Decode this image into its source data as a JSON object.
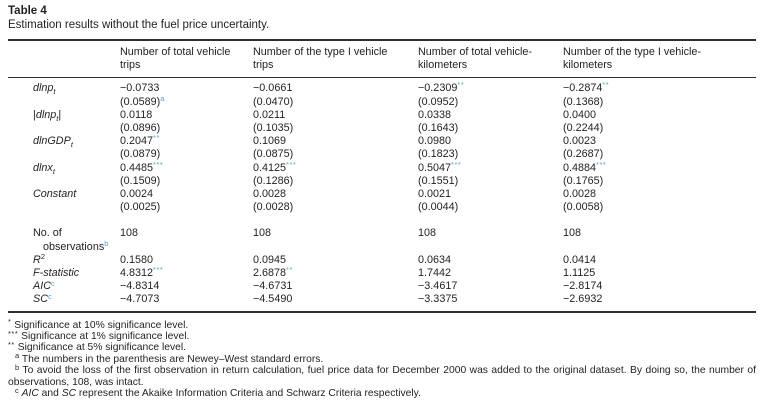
{
  "colors": {
    "text": "#231f20",
    "link": "#5b9fd6",
    "rule": "#2e2e2e"
  },
  "table": {
    "label": "Table 4",
    "caption": "Estimation results without the fuel price uncertainty.",
    "columns": [
      {
        "lines": [
          "Number of total vehicle",
          "trips"
        ]
      },
      {
        "lines": [
          "Number of the type I vehicle",
          "trips"
        ]
      },
      {
        "lines": [
          "Number of total vehicle-",
          "kilometers"
        ]
      },
      {
        "lines": [
          "Number of the type I vehicle-",
          "kilometers"
        ]
      }
    ],
    "coef_rows": [
      {
        "label": {
          "main": "dlnp",
          "italic": true,
          "sub": "t"
        },
        "cells": [
          {
            "coef": "−0.0733",
            "stars": "",
            "se": "(0.0589)",
            "se_sup": "a"
          },
          {
            "coef": "−0.0661",
            "stars": "",
            "se": "(0.0470)",
            "se_sup": ""
          },
          {
            "coef": "−0.2309",
            "stars": "**",
            "se": "(0.0952)",
            "se_sup": ""
          },
          {
            "coef": "−0.2874",
            "stars": "**",
            "se": "(0.1368)",
            "se_sup": ""
          }
        ]
      },
      {
        "label": {
          "pre": "|",
          "main": "dlnp",
          "italic": true,
          "sub": "t",
          "post": "|"
        },
        "cells": [
          {
            "coef": "0.0118",
            "stars": "",
            "se": "(0.0896)",
            "se_sup": ""
          },
          {
            "coef": "0.0211",
            "stars": "",
            "se": "(0.1035)",
            "se_sup": ""
          },
          {
            "coef": "0.0338",
            "stars": "",
            "se": "(0.1643)",
            "se_sup": ""
          },
          {
            "coef": "0.0400",
            "stars": "",
            "se": "(0.2244)",
            "se_sup": ""
          }
        ]
      },
      {
        "label": {
          "main": "dlnGDP",
          "italic": true,
          "sub": "t"
        },
        "cells": [
          {
            "coef": "0.2047",
            "stars": "**",
            "se": "(0.0879)",
            "se_sup": ""
          },
          {
            "coef": "0.1069",
            "stars": "",
            "se": "(0.0875)",
            "se_sup": ""
          },
          {
            "coef": "0.0980",
            "stars": "",
            "se": "(0.1823)",
            "se_sup": ""
          },
          {
            "coef": "0.0023",
            "stars": "",
            "se": "(0.2687)",
            "se_sup": ""
          }
        ]
      },
      {
        "label": {
          "main": "dlnx",
          "italic": true,
          "sub": "t"
        },
        "cells": [
          {
            "coef": "0.4485",
            "stars": "***",
            "se": "(0.1509)",
            "se_sup": ""
          },
          {
            "coef": "0.4125",
            "stars": "***",
            "se": "(0.1286)",
            "se_sup": ""
          },
          {
            "coef": "0.5047",
            "stars": "***",
            "se": "(0.1551)",
            "se_sup": ""
          },
          {
            "coef": "0.4884",
            "stars": "***",
            "se": "(0.1765)",
            "se_sup": ""
          }
        ]
      },
      {
        "label": {
          "main": "Constant",
          "italic": true
        },
        "cells": [
          {
            "coef": "0.0024",
            "stars": "",
            "se": "(0.0025)",
            "se_sup": ""
          },
          {
            "coef": "0.0028",
            "stars": "",
            "se": "(0.0028)",
            "se_sup": ""
          },
          {
            "coef": "0.0021",
            "stars": "",
            "se": "(0.0044)",
            "se_sup": ""
          },
          {
            "coef": "0.0028",
            "stars": "",
            "se": "(0.0058)",
            "se_sup": ""
          }
        ]
      }
    ],
    "stat_rows": [
      {
        "label": {
          "main": "No. of",
          "italic": false,
          "line2": "observations",
          "line2_sup": "b"
        },
        "cells": [
          {
            "v": "108"
          },
          {
            "v": "108"
          },
          {
            "v": "108"
          },
          {
            "v": "108"
          }
        ]
      },
      {
        "label": {
          "main": "R",
          "italic": true,
          "sup": "2",
          "sup_link": false
        },
        "cells": [
          {
            "v": "0.1580"
          },
          {
            "v": "0.0945"
          },
          {
            "v": "0.0634"
          },
          {
            "v": "0.0414"
          }
        ]
      },
      {
        "label": {
          "main": "F-statistic",
          "italic": true
        },
        "cells": [
          {
            "v": "4.8312",
            "stars": "***"
          },
          {
            "v": "2.6878",
            "stars": "**"
          },
          {
            "v": "1.7442"
          },
          {
            "v": "1.1125"
          }
        ]
      },
      {
        "label": {
          "main": "AIC",
          "italic": true,
          "sup": "c",
          "sup_link": true
        },
        "cells": [
          {
            "v": "−4.8314"
          },
          {
            "v": "−4.6731"
          },
          {
            "v": "−3.4617"
          },
          {
            "v": "−2.8174"
          }
        ]
      },
      {
        "label": {
          "main": "SC",
          "italic": true,
          "sup": "c",
          "sup_link": true
        },
        "cells": [
          {
            "v": "−4.7073"
          },
          {
            "v": "−4.5490"
          },
          {
            "v": "−3.3375"
          },
          {
            "v": "−2.6932"
          }
        ]
      }
    ]
  },
  "footnotes": [
    {
      "marker": "*",
      "type": "star",
      "parts": [
        {
          "t": "Significance at 10% significance level."
        }
      ]
    },
    {
      "marker": "***",
      "type": "star",
      "parts": [
        {
          "t": "Significance at 1% significance level."
        }
      ]
    },
    {
      "marker": "**",
      "type": "star",
      "parts": [
        {
          "t": "Significance at 5% significance level."
        }
      ]
    },
    {
      "marker": "a",
      "type": "letter",
      "parts": [
        {
          "t": "The numbers in the parenthesis are Newey–West standard errors."
        }
      ]
    },
    {
      "marker": "b",
      "type": "letter",
      "justify": true,
      "parts": [
        {
          "t": "To avoid the loss of the first observation in return calculation, fuel price data for December 2000 was added to the original dataset. By doing so, the number of observations, 108, was intact."
        }
      ]
    },
    {
      "marker": "c",
      "type": "letter",
      "parts": [
        {
          "t": "AIC",
          "i": true
        },
        {
          "t": " and "
        },
        {
          "t": "SC",
          "i": true
        },
        {
          "t": " represent the Akaike Information Criteria and Schwarz Criteria respectively."
        }
      ]
    }
  ]
}
